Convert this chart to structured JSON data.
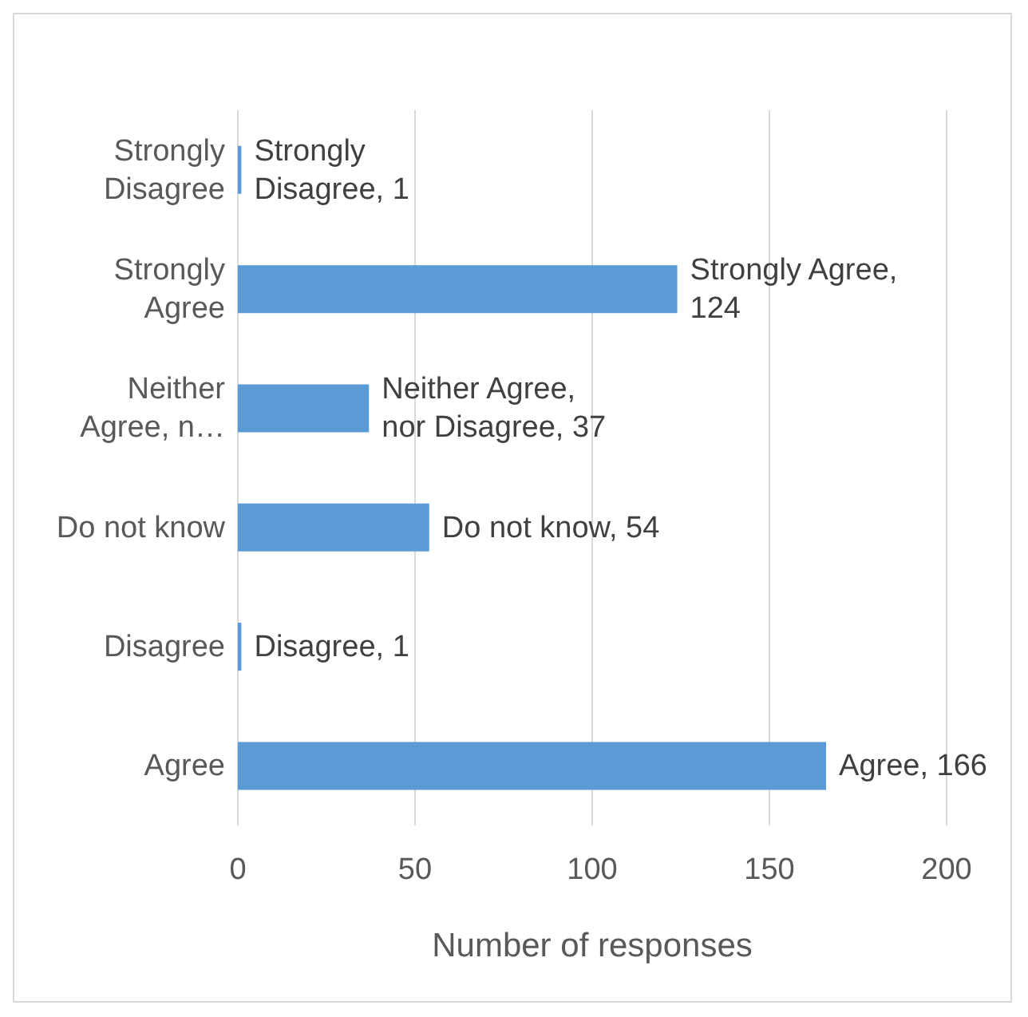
{
  "chart_data": {
    "type": "bar",
    "orientation": "horizontal",
    "xlabel": "Number of responses",
    "categories": [
      "Strongly Disagree",
      "Strongly Agree",
      "Neither Agree, n…",
      "Do not know",
      "Disagree",
      "Agree"
    ],
    "values": [
      1,
      124,
      37,
      54,
      1,
      166
    ],
    "value_labels": [
      "Strongly Disagree, 1",
      "Strongly Agree, 124",
      "Neither Agree, nor Disagree, 37",
      "Do not know, 54",
      "Disagree, 1",
      "Agree, 166"
    ],
    "color": "#5b9bd5",
    "xlim": [
      0,
      200
    ],
    "xticks": [
      0,
      50,
      100,
      150,
      200
    ],
    "grid": "x",
    "legend": false
  }
}
